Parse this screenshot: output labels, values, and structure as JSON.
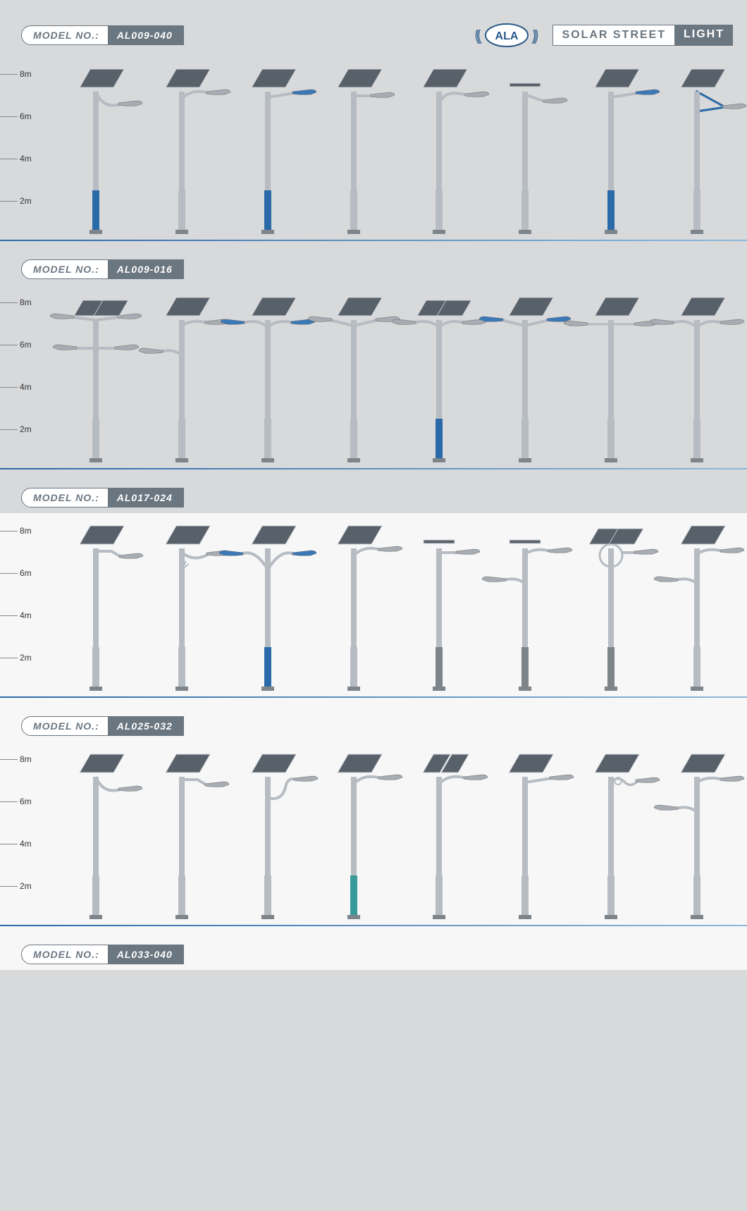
{
  "header": {
    "model_prefix": "MODEL NO.:",
    "model_code": "AL009-040",
    "logo_text": "ALA",
    "title_left": "SOLAR STREET",
    "title_right": "LIGHT"
  },
  "colors": {
    "badge_bg": "#6a7680",
    "badge_fg": "#ffffff",
    "accent_blue": "#2a6aa8",
    "pole_gray": "#b6bcc2",
    "pole_dark": "#7d848a",
    "panel_fill": "#58606a",
    "panel_stroke": "#cfd3d7",
    "lamp_head": "#a8adb3",
    "lamp_blue": "#3a78b8",
    "bg_gray": "#d8d9db",
    "bg_light": "#edeeef",
    "bg_white": "#f7f7f8",
    "baseline_grad_start": "#2a6aa8",
    "baseline_grad_end": "#8fb8d8"
  },
  "scale_labels": [
    "8m",
    "6m",
    "4m",
    "2m"
  ],
  "sections": [
    {
      "model_prefix": "MODEL NO.:",
      "model_code": "AL009-016",
      "bg": "bg_gray",
      "lamps": [
        {
          "arm": "curve-down",
          "base": "blue",
          "head": "gray",
          "panel": "std"
        },
        {
          "arm": "curve-up",
          "base": "gray",
          "head": "gray",
          "panel": "std"
        },
        {
          "arm": "straight",
          "base": "blue",
          "head": "blue",
          "panel": "std"
        },
        {
          "arm": "short",
          "base": "gray",
          "head": "gray",
          "panel": "std"
        },
        {
          "arm": "curve-wide",
          "base": "gray",
          "head": "gray",
          "panel": "std"
        },
        {
          "arm": "down-short",
          "base": "gray",
          "head": "gray",
          "panel": "flat"
        },
        {
          "arm": "straight",
          "base": "blue",
          "head": "blue",
          "panel": "std"
        },
        {
          "arm": "triangle",
          "base": "gray",
          "head": "gray",
          "panel": "std"
        }
      ]
    },
    {
      "model_prefix": "MODEL NO.:",
      "model_code": "AL017-024",
      "bg": "bg_gray",
      "lamps": [
        {
          "arm": "double-tree",
          "base": "gray",
          "head": "gray",
          "panel": "double"
        },
        {
          "arm": "double-low",
          "base": "gray",
          "head": "gray",
          "panel": "std"
        },
        {
          "arm": "double",
          "base": "gray",
          "head": "blue",
          "panel": "std"
        },
        {
          "arm": "double-v",
          "base": "gray",
          "head": "gray",
          "panel": "std"
        },
        {
          "arm": "double",
          "base": "blue",
          "head": "gray",
          "panel": "double"
        },
        {
          "arm": "double-v",
          "base": "gray",
          "head": "blue",
          "panel": "std"
        },
        {
          "arm": "double-thin",
          "base": "gray",
          "head": "gray",
          "panel": "std"
        },
        {
          "arm": "double",
          "base": "gray",
          "head": "gray",
          "panel": "std"
        }
      ]
    },
    {
      "model_prefix": "MODEL NO.:",
      "model_code": "AL025-032",
      "bg": "bg_white",
      "lamps": [
        {
          "arm": "angle",
          "base": "gray",
          "head": "gray",
          "panel": "std"
        },
        {
          "arm": "curve-deco",
          "base": "gray",
          "head": "gray",
          "panel": "std"
        },
        {
          "arm": "double-curve",
          "base": "blue-half",
          "head": "blue",
          "panel": "std"
        },
        {
          "arm": "curve-up",
          "base": "gray",
          "head": "gray",
          "panel": "std"
        },
        {
          "arm": "short",
          "base": "dark",
          "head": "gray",
          "panel": "flat"
        },
        {
          "arm": "double-low",
          "base": "dark",
          "head": "gray",
          "panel": "flat"
        },
        {
          "arm": "ring",
          "base": "dark",
          "head": "gray",
          "panel": "double"
        },
        {
          "arm": "double-low",
          "base": "gray",
          "head": "gray",
          "panel": "std"
        }
      ]
    },
    {
      "model_prefix": "MODEL NO.:",
      "model_code": "AL033-040",
      "bg": "bg_white",
      "lamps": [
        {
          "arm": "curve-down",
          "base": "gray",
          "head": "gray",
          "panel": "std"
        },
        {
          "arm": "angle",
          "base": "gray",
          "head": "gray",
          "panel": "std"
        },
        {
          "arm": "s-curve",
          "base": "gray",
          "head": "gray",
          "panel": "std"
        },
        {
          "arm": "curve-up",
          "base": "teal",
          "head": "gray",
          "panel": "std"
        },
        {
          "arm": "curve-up",
          "base": "gray",
          "head": "gray",
          "panel": "std-dual"
        },
        {
          "arm": "straight",
          "base": "gray",
          "head": "gray",
          "panel": "std"
        },
        {
          "arm": "deco-loop",
          "base": "gray",
          "head": "gray",
          "panel": "std"
        },
        {
          "arm": "double-low",
          "base": "gray",
          "head": "gray",
          "panel": "std"
        }
      ]
    }
  ]
}
